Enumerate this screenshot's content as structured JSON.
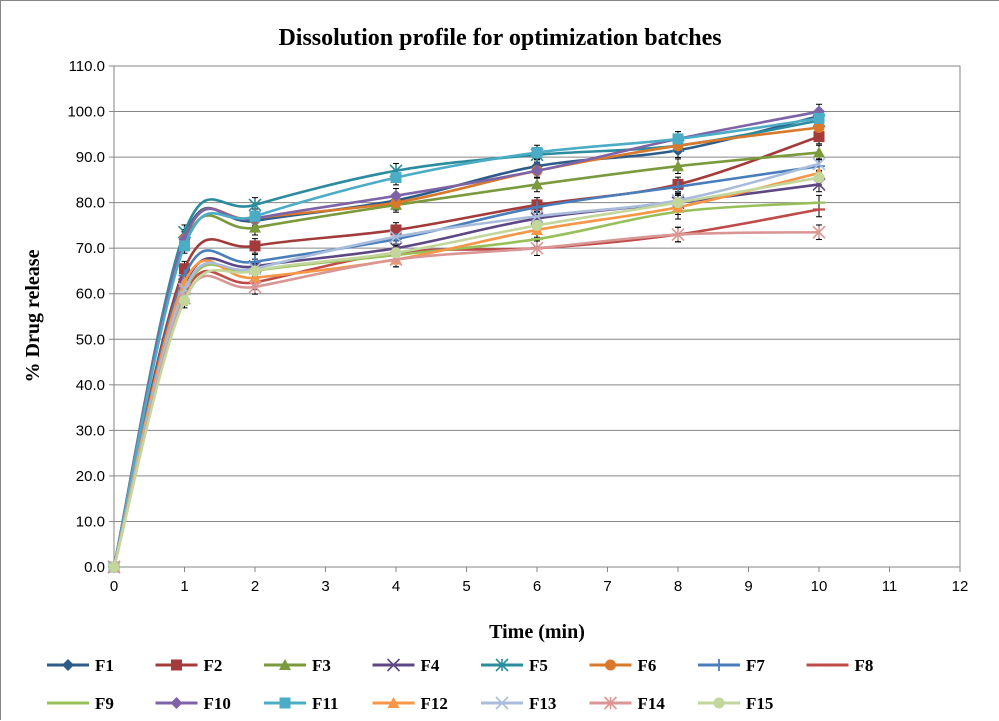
{
  "chart_data": {
    "type": "line",
    "title": "Dissolution  profile for optimization batches",
    "xlabel": "Time (min)",
    "ylabel": "% Drug release",
    "x": [
      0,
      1,
      2,
      4,
      6,
      8,
      10
    ],
    "xlim": [
      0,
      12
    ],
    "ylim": [
      0,
      110
    ],
    "x_ticks": [
      "0",
      "1",
      "2",
      "3",
      "4",
      "5",
      "6",
      "7",
      "8",
      "9",
      "10",
      "11",
      "12"
    ],
    "y_ticks": [
      "0.0",
      "10.0",
      "20.0",
      "30.0",
      "40.0",
      "50.0",
      "60.0",
      "70.0",
      "80.0",
      "90.0",
      "100.0",
      "110.0"
    ],
    "grid": "horizontal",
    "smoothed": true,
    "error_bars": true,
    "legend_position": "bottom",
    "series": [
      {
        "name": "F1",
        "color": "#2E5C8A",
        "marker": "diamond",
        "values": [
          0,
          72.5,
          76.0,
          80.5,
          88.0,
          91.5,
          99.0
        ]
      },
      {
        "name": "F2",
        "color": "#A33B3B",
        "marker": "square",
        "values": [
          0,
          65.5,
          70.5,
          74.0,
          79.5,
          84.0,
          94.5
        ]
      },
      {
        "name": "F3",
        "color": "#7A9A3C",
        "marker": "triangle",
        "values": [
          0,
          71.0,
          74.5,
          79.5,
          84.0,
          88.0,
          91.0
        ]
      },
      {
        "name": "F4",
        "color": "#5E4785",
        "marker": "x",
        "values": [
          0,
          62.0,
          66.0,
          70.0,
          76.5,
          80.0,
          84.0
        ]
      },
      {
        "name": "F5",
        "color": "#2B8C9E",
        "marker": "star",
        "values": [
          0,
          73.5,
          79.5,
          87.0,
          90.5,
          92.5,
          98.0
        ]
      },
      {
        "name": "F6",
        "color": "#D9792B",
        "marker": "circle",
        "values": [
          0,
          72.0,
          76.5,
          80.0,
          87.0,
          92.5,
          96.5
        ]
      },
      {
        "name": "F7",
        "color": "#4A7EBB",
        "marker": "plus",
        "values": [
          0,
          64.0,
          67.0,
          72.0,
          79.0,
          83.5,
          88.0
        ]
      },
      {
        "name": "F8",
        "color": "#BE4B48",
        "marker": "dash",
        "values": [
          0,
          60.0,
          62.5,
          69.0,
          70.0,
          73.0,
          78.5
        ]
      },
      {
        "name": "F9",
        "color": "#98C05A",
        "marker": "dash",
        "values": [
          0,
          60.5,
          65.0,
          68.5,
          72.0,
          78.0,
          80.0
        ]
      },
      {
        "name": "F10",
        "color": "#7E63A8",
        "marker": "diamond",
        "values": [
          0,
          72.0,
          76.5,
          81.5,
          87.0,
          94.0,
          100.0
        ]
      },
      {
        "name": "F11",
        "color": "#4BACC6",
        "marker": "square",
        "values": [
          0,
          70.5,
          77.0,
          85.5,
          91.0,
          94.0,
          98.5
        ]
      },
      {
        "name": "F12",
        "color": "#F79646",
        "marker": "triangle",
        "values": [
          0,
          62.5,
          63.5,
          67.5,
          74.0,
          79.0,
          86.5
        ]
      },
      {
        "name": "F13",
        "color": "#A9BCDB",
        "marker": "x",
        "values": [
          0,
          61.0,
          65.5,
          72.5,
          77.0,
          80.5,
          88.5
        ]
      },
      {
        "name": "F14",
        "color": "#D99694",
        "marker": "star",
        "values": [
          0,
          59.0,
          61.5,
          67.5,
          70.0,
          73.0,
          73.5
        ]
      },
      {
        "name": "F15",
        "color": "#C3D69B",
        "marker": "circle",
        "values": [
          0,
          58.5,
          65.0,
          69.0,
          75.0,
          80.0,
          85.5
        ]
      }
    ]
  }
}
